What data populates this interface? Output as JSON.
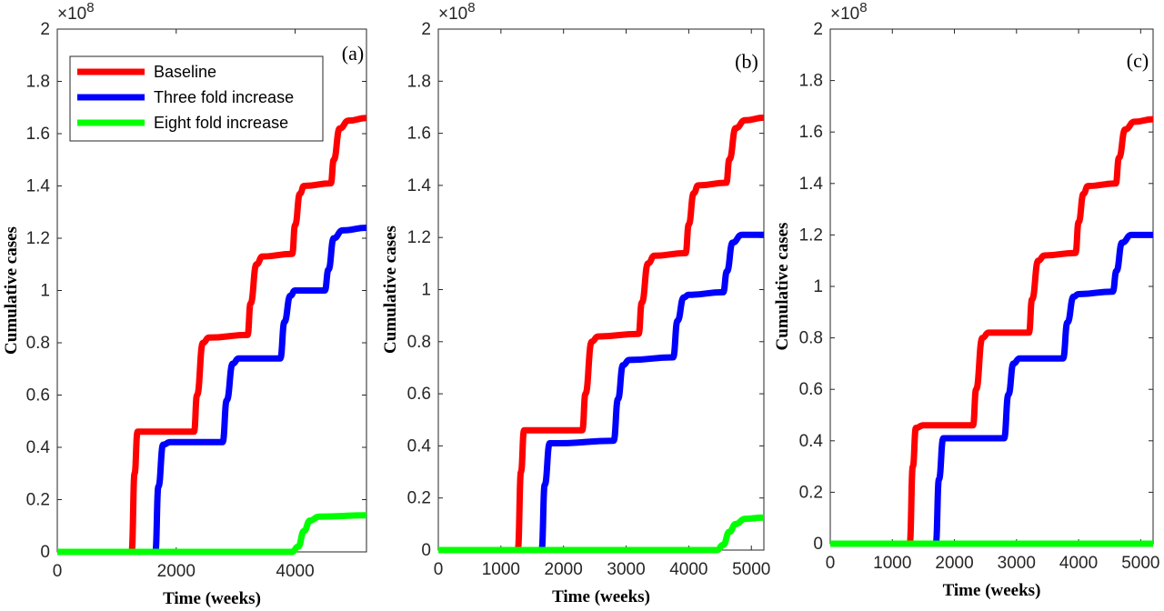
{
  "chart_data": [
    {
      "type": "line",
      "panel_label": "(a)",
      "xlabel": "Time (weeks)",
      "ylabel": "Cumulative cases",
      "y_exponent_label": "×10^8",
      "xlim": [
        0,
        5200
      ],
      "ylim": [
        0,
        2
      ],
      "xticks": [
        0,
        2000,
        4000
      ],
      "xtick_labels": [
        "0",
        "2000",
        "4000"
      ],
      "yticks": [
        0,
        0.2,
        0.4,
        0.6,
        0.8,
        1,
        1.2,
        1.4,
        1.6,
        1.8,
        2
      ],
      "ytick_labels": [
        "0",
        "0.2",
        "0.4",
        "0.6",
        "0.8",
        "1",
        "1.2",
        "1.4",
        "1.6",
        "1.8",
        "2"
      ],
      "legend": {
        "position": "top-left",
        "entries": [
          "Baseline",
          "Three fold increase",
          "Eight fold increase"
        ]
      },
      "series": [
        {
          "name": "Baseline",
          "color": "#ff0000",
          "x": [
            0,
            1250,
            1300,
            1350,
            1500,
            2300,
            2350,
            2450,
            2550,
            3200,
            3250,
            3350,
            3450,
            3950,
            4000,
            4080,
            4150,
            4600,
            4650,
            4750,
            4900,
            5200
          ],
          "y": [
            0,
            0,
            0.3,
            0.46,
            0.46,
            0.46,
            0.6,
            0.8,
            0.82,
            0.83,
            0.95,
            1.1,
            1.13,
            1.14,
            1.25,
            1.37,
            1.4,
            1.41,
            1.5,
            1.62,
            1.65,
            1.66
          ]
        },
        {
          "name": "Three fold increase",
          "color": "#0000ff",
          "x": [
            0,
            1650,
            1700,
            1780,
            1900,
            2780,
            2850,
            2950,
            3050,
            3750,
            3820,
            3920,
            4000,
            4500,
            4560,
            4650,
            4800,
            5200
          ],
          "y": [
            0,
            0,
            0.25,
            0.41,
            0.42,
            0.42,
            0.58,
            0.72,
            0.74,
            0.74,
            0.88,
            0.98,
            1.0,
            1.0,
            1.08,
            1.2,
            1.23,
            1.24
          ]
        },
        {
          "name": "Eight fold increase",
          "color": "#00ff00",
          "x": [
            0,
            3950,
            4050,
            4150,
            4250,
            4400,
            5200
          ],
          "y": [
            0,
            0,
            0.02,
            0.08,
            0.12,
            0.135,
            0.14
          ]
        }
      ]
    },
    {
      "type": "line",
      "panel_label": "(b)",
      "xlabel": "Time (weeks)",
      "ylabel": "Cumulative cases",
      "y_exponent_label": "×10^8",
      "xlim": [
        0,
        5200
      ],
      "ylim": [
        0,
        2
      ],
      "xticks": [
        0,
        1000,
        2000,
        3000,
        4000,
        5000
      ],
      "xtick_labels": [
        "0",
        "1000",
        "2000",
        "3000",
        "4000",
        "5000"
      ],
      "yticks": [
        0,
        0.2,
        0.4,
        0.6,
        0.8,
        1,
        1.2,
        1.4,
        1.6,
        1.8,
        2
      ],
      "ytick_labels": [
        "0",
        "0.2",
        "0.4",
        "0.6",
        "0.8",
        "1",
        "1.2",
        "1.4",
        "1.6",
        "1.8",
        "2"
      ],
      "series": [
        {
          "name": "Baseline",
          "color": "#ff0000",
          "x": [
            0,
            1270,
            1320,
            1370,
            1500,
            2300,
            2350,
            2450,
            2550,
            3200,
            3250,
            3350,
            3450,
            3950,
            4000,
            4080,
            4150,
            4600,
            4650,
            4750,
            4900,
            5200
          ],
          "y": [
            0,
            0,
            0.3,
            0.46,
            0.46,
            0.46,
            0.6,
            0.8,
            0.82,
            0.83,
            0.95,
            1.1,
            1.13,
            1.14,
            1.25,
            1.37,
            1.4,
            1.41,
            1.5,
            1.62,
            1.65,
            1.66
          ]
        },
        {
          "name": "Three fold increase",
          "color": "#0000ff",
          "x": [
            0,
            1650,
            1700,
            1780,
            1900,
            2800,
            2870,
            2950,
            3050,
            3750,
            3820,
            3920,
            4000,
            4550,
            4610,
            4700,
            4850,
            5200
          ],
          "y": [
            0,
            0,
            0.25,
            0.41,
            0.41,
            0.42,
            0.58,
            0.71,
            0.73,
            0.74,
            0.88,
            0.97,
            0.98,
            0.99,
            1.07,
            1.18,
            1.21,
            1.21
          ]
        },
        {
          "name": "Eight fold increase",
          "color": "#00ff00",
          "x": [
            0,
            4450,
            4550,
            4650,
            4750,
            4900,
            5200
          ],
          "y": [
            0,
            0,
            0.02,
            0.07,
            0.1,
            0.12,
            0.125
          ]
        }
      ]
    },
    {
      "type": "line",
      "panel_label": "(c)",
      "xlabel": "Time (weeks)",
      "ylabel": "Cumulative cases",
      "y_exponent_label": "×10^8",
      "xlim": [
        0,
        5200
      ],
      "ylim": [
        0,
        2
      ],
      "xticks": [
        0,
        1000,
        2000,
        3000,
        4000,
        5000
      ],
      "xtick_labels": [
        "0",
        "1000",
        "2000",
        "3000",
        "4000",
        "5000"
      ],
      "yticks": [
        0,
        0.2,
        0.4,
        0.6,
        0.8,
        1,
        1.2,
        1.4,
        1.6,
        1.8,
        2
      ],
      "ytick_labels": [
        "0",
        "0.2",
        "0.4",
        "0.6",
        "0.8",
        "1",
        "1.2",
        "1.4",
        "1.6",
        "1.8",
        "2"
      ],
      "series": [
        {
          "name": "Baseline",
          "color": "#ff0000",
          "x": [
            0,
            1280,
            1330,
            1380,
            1500,
            2300,
            2350,
            2450,
            2550,
            3200,
            3250,
            3350,
            3450,
            3950,
            4000,
            4080,
            4150,
            4600,
            4650,
            4750,
            4900,
            5200
          ],
          "y": [
            0,
            0,
            0.3,
            0.45,
            0.46,
            0.46,
            0.6,
            0.8,
            0.82,
            0.82,
            0.95,
            1.1,
            1.12,
            1.13,
            1.25,
            1.36,
            1.39,
            1.4,
            1.5,
            1.61,
            1.64,
            1.65
          ]
        },
        {
          "name": "Three fold increase",
          "color": "#0000ff",
          "x": [
            0,
            1700,
            1750,
            1820,
            1950,
            2800,
            2870,
            2950,
            3050,
            3750,
            3820,
            3920,
            4000,
            4550,
            4610,
            4700,
            4850,
            5200
          ],
          "y": [
            0,
            0,
            0.25,
            0.41,
            0.41,
            0.41,
            0.58,
            0.7,
            0.72,
            0.72,
            0.86,
            0.96,
            0.97,
            0.98,
            1.06,
            1.17,
            1.2,
            1.2
          ]
        },
        {
          "name": "Eight fold increase",
          "color": "#00ff00",
          "x": [
            0,
            5200
          ],
          "y": [
            0,
            0
          ]
        }
      ]
    }
  ]
}
